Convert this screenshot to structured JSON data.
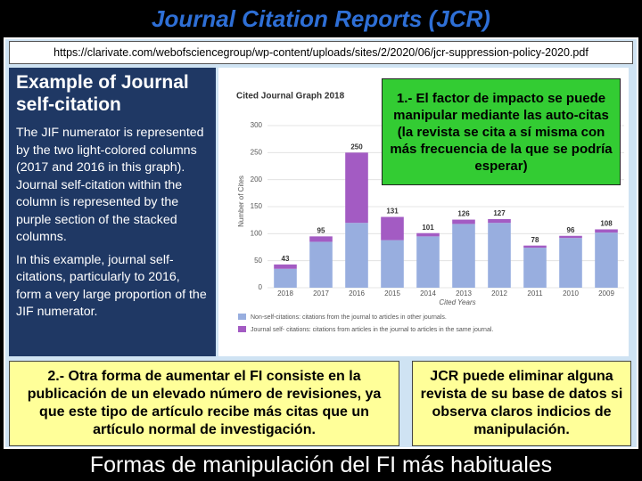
{
  "header": {
    "title": "Journal Citation Reports (JCR)",
    "url": "https://clarivate.com/webofsciencegroup/wp-content/uploads/sites/2/2020/06/jcr-suppression-policy-2020.pdf"
  },
  "panel": {
    "heading": "Example of Journal self-citation",
    "paragraphs": [
      "The JIF numerator is represented by the two light-colored columns (2017 and 2016 in this graph). Journal self-citation within the column is represented by the purple section of the stacked columns.",
      "In this example,  journal self-citations, particularly to 2016, form a very large proportion of the JIF numerator."
    ]
  },
  "chart_data": {
    "type": "stacked_bar",
    "title": "Cited Journal Graph  2018",
    "y_label": "Number of Cites",
    "x_label": "Cited Years",
    "categories": [
      "2018",
      "2017",
      "2016",
      "2015",
      "2014",
      "2013",
      "2012",
      "2011",
      "2010",
      "2009"
    ],
    "series": [
      {
        "name": "Non-self-citations: citations from the journal to articles in other journals.",
        "color": "#98aedf",
        "values": [
          35,
          85,
          120,
          88,
          95,
          118,
          120,
          74,
          92,
          102
        ]
      },
      {
        "name": "Journal self- citations: citations from articles in the journal to articles in the same journal.",
        "color": "#a35bc3",
        "values": [
          8,
          10,
          130,
          43,
          6,
          8,
          7,
          4,
          4,
          6
        ]
      }
    ],
    "totals": [
      43,
      95,
      250,
      131,
      101,
      126,
      127,
      78,
      96,
      108
    ],
    "ylim": [
      0,
      300
    ],
    "yticks": [
      0,
      50,
      100,
      150,
      200,
      250,
      300
    ],
    "grid": true
  },
  "callouts": [
    "1.- El factor de impacto se puede manipular mediante las auto-citas (la revista se cita a sí misma con más frecuencia de la que se podría esperar)",
    "2.- Otra forma de aumentar el FI consiste en la publicación de un elevado número de revisiones, ya que este tipo de artículo recibe más citas que un artículo normal de investigación.",
    "JCR puede eliminar alguna revista de su base de datos si observa claros indicios de manipulación."
  ],
  "footer": "Formas de manipulación del FI más habituales"
}
